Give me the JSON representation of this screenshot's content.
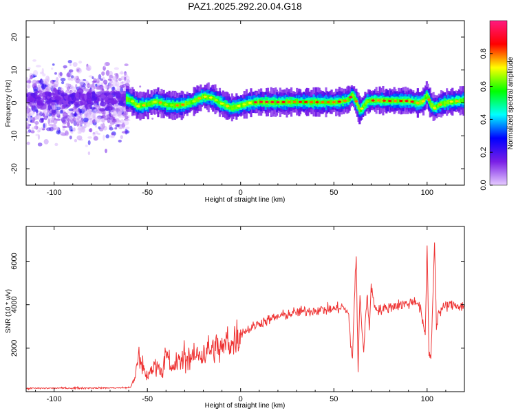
{
  "title": "PAZ1.2025.292.20.04.G18",
  "chart_data": [
    {
      "type": "heatmap",
      "xlabel": "Height of straight line (km)",
      "ylabel": "Frequency (Hz)",
      "xlim": [
        -115,
        120
      ],
      "ylim": [
        -25,
        25
      ],
      "x_ticks": [
        -100,
        -50,
        0,
        50,
        100
      ],
      "y_ticks": [
        -20,
        -10,
        0,
        10,
        20
      ],
      "colorbar": {
        "label": "Normalized spectral amplitude",
        "range": [
          0,
          1
        ],
        "ticks": [
          0.0,
          0.2,
          0.4,
          0.6,
          0.8
        ],
        "tick_labels": [
          "0.0",
          "0.2",
          "0.4",
          "0.6",
          "0.8"
        ],
        "colors": [
          "#e6ccff",
          "#7a1fe6",
          "#0000ff",
          "#00ffff",
          "#00ff00",
          "#ffff00",
          "#ff0000",
          "#ff1a80"
        ]
      },
      "ridge": [
        [
          -62,
          1.5
        ],
        [
          -58,
          0.5
        ],
        [
          -55,
          -1.0
        ],
        [
          -50,
          -0.5
        ],
        [
          -45,
          0.5
        ],
        [
          -40,
          -0.5
        ],
        [
          -35,
          -0.8
        ],
        [
          -30,
          -0.5
        ],
        [
          -25,
          0.5
        ],
        [
          -20,
          2.0
        ],
        [
          -15,
          1.5
        ],
        [
          -10,
          -0.2
        ],
        [
          -5,
          -1.5
        ],
        [
          0,
          -0.8
        ],
        [
          5,
          0.0
        ],
        [
          10,
          0.3
        ],
        [
          20,
          0.2
        ],
        [
          30,
          0.3
        ],
        [
          40,
          0.2
        ],
        [
          50,
          0.2
        ],
        [
          55,
          0.5
        ],
        [
          58,
          1.0
        ],
        [
          60,
          2.5
        ],
        [
          62,
          0.5
        ],
        [
          64,
          -2.5
        ],
        [
          66,
          -1.0
        ],
        [
          68,
          0.5
        ],
        [
          72,
          0.8
        ],
        [
          80,
          0.6
        ],
        [
          90,
          0.6
        ],
        [
          95,
          0.0
        ],
        [
          98,
          0.5
        ],
        [
          100,
          2.5
        ],
        [
          102,
          -0.5
        ],
        [
          104,
          -1.5
        ],
        [
          108,
          -0.2
        ],
        [
          112,
          0.3
        ],
        [
          120,
          0.8
        ]
      ]
    },
    {
      "type": "line",
      "xlabel": "Height of straight line (km)",
      "ylabel": "SNR (10 * v/v)",
      "xlim": [
        -115,
        120
      ],
      "ylim": [
        0,
        7600
      ],
      "x_ticks": [
        -100,
        -50,
        0,
        50,
        100
      ],
      "y_ticks": [
        2000,
        4000,
        6000
      ],
      "line_color": "#ee3333",
      "series": [
        {
          "name": "SNR",
          "x": [
            -115,
            -100,
            -80,
            -62,
            -59,
            -57,
            -55,
            -52,
            -50,
            -47,
            -45,
            -42,
            -40,
            -38,
            -35,
            -30,
            -25,
            -20,
            -15,
            -10,
            -5,
            0,
            5,
            10,
            20,
            30,
            40,
            50,
            55,
            58,
            59,
            60,
            61,
            62,
            63,
            64,
            65,
            66,
            67,
            68,
            69,
            70,
            72,
            75,
            80,
            85,
            90,
            94,
            95,
            97,
            98,
            99,
            100,
            101,
            102,
            103,
            104,
            105,
            106,
            110,
            115,
            120
          ],
          "y": [
            150,
            160,
            170,
            180,
            200,
            600,
            1400,
            900,
            700,
            1100,
            1300,
            800,
            2000,
            900,
            1300,
            1500,
            1600,
            1800,
            2000,
            2000,
            2300,
            2700,
            2900,
            3150,
            3450,
            3650,
            3750,
            3800,
            3900,
            3500,
            2200,
            1500,
            4300,
            6200,
            900,
            4500,
            3000,
            1800,
            3500,
            4300,
            3000,
            4800,
            3900,
            3750,
            3900,
            4000,
            4050,
            4200,
            4100,
            3600,
            3000,
            2500,
            6800,
            1800,
            1500,
            4100,
            6900,
            3000,
            3600,
            3950,
            4000,
            3900
          ]
        }
      ]
    }
  ]
}
